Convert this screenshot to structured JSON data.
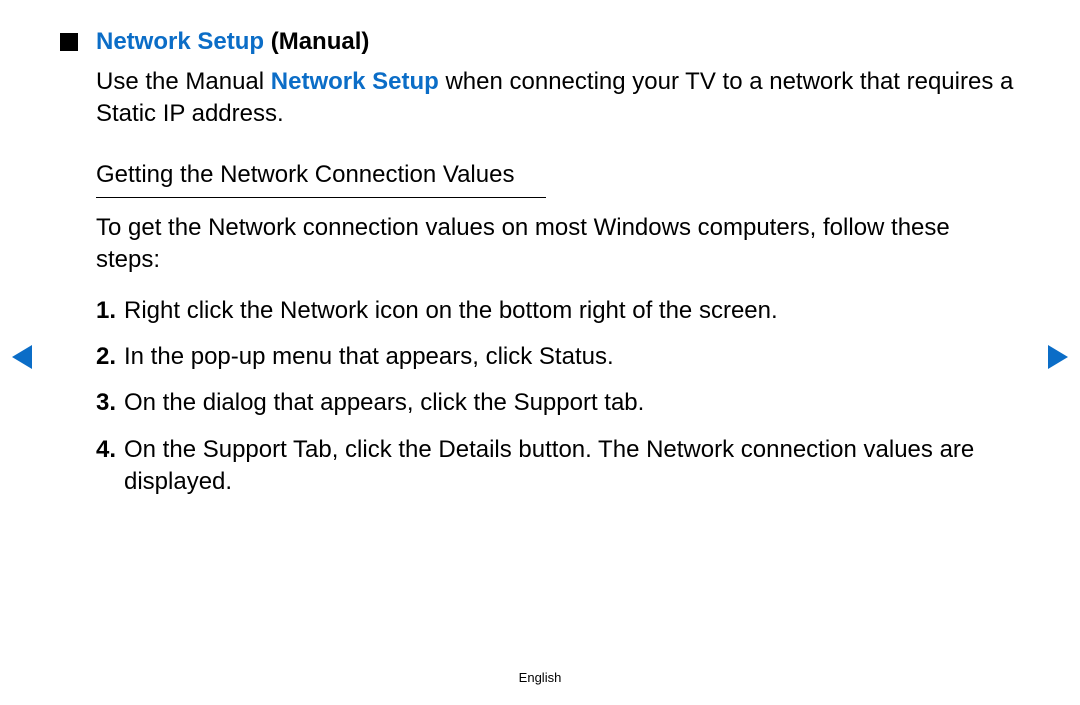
{
  "heading": {
    "title_blue": "Network Setup",
    "title_paren": "(Manual)"
  },
  "intro": {
    "pre": "Use the Manual ",
    "highlight": "Network Setup",
    "post": " when connecting your TV to a network that requires a Static IP address."
  },
  "subheading": "Getting the Network Connection Values",
  "subintro": "To get the Network connection values on most Windows computers, follow these steps:",
  "steps": [
    {
      "num": "1.",
      "text": "Right click the Network icon on the bottom right of the screen."
    },
    {
      "num": "2.",
      "text": "In the pop-up menu that appears, click Status."
    },
    {
      "num": "3.",
      "text": "On the dialog that appears, click the Support tab."
    },
    {
      "num": "4.",
      "text": "On the Support Tab, click the Details button. The Network connection values are displayed."
    }
  ],
  "footer_language": "English",
  "colors": {
    "accent": "#0b6dc7",
    "text": "#000000",
    "background": "#ffffff"
  }
}
